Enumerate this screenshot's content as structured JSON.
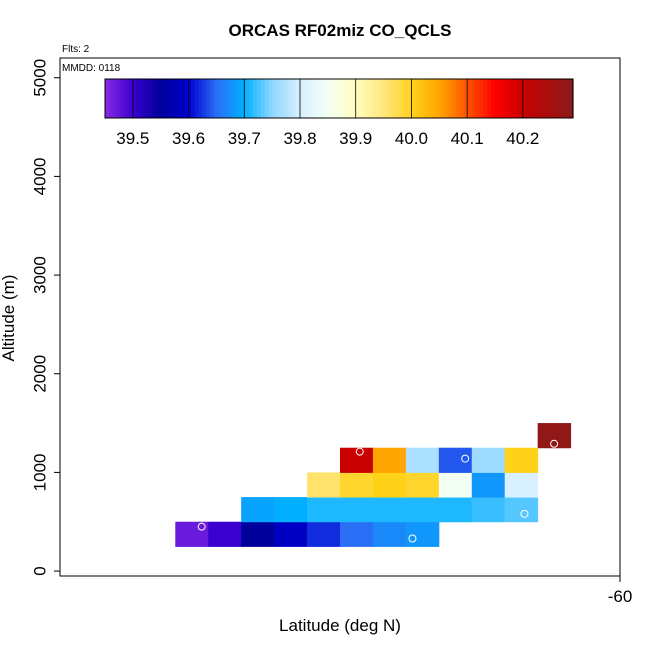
{
  "chart_data": {
    "type": "heatmap",
    "title": "ORCAS RF02miz CO_QCLS",
    "annotations": {
      "flights": "Flts: 2",
      "date": "MMDD: 0118"
    },
    "xlabel": "Latitude (deg N)",
    "ylabel": "Altitude (m)",
    "xlim": [
      -61.7,
      -60.0
    ],
    "ylim": [
      -50,
      5200
    ],
    "x_ticks": [
      -60
    ],
    "y_ticks": [
      0,
      1000,
      2000,
      3000,
      4000,
      5000
    ],
    "colorbar": {
      "range": [
        39.45,
        40.29
      ],
      "ticks": [
        "39.5",
        "39.6",
        "39.7",
        "39.8",
        "39.9",
        "40.0",
        "40.1",
        "40.2"
      ],
      "tick_values": [
        39.5,
        39.6,
        39.7,
        39.8,
        39.9,
        40.0,
        40.1,
        40.2
      ],
      "stops": [
        {
          "v": 39.45,
          "c": "#8a2be2"
        },
        {
          "v": 39.5,
          "c": "#3a00d0"
        },
        {
          "v": 39.55,
          "c": "#00009a"
        },
        {
          "v": 39.6,
          "c": "#0000cd"
        },
        {
          "v": 39.65,
          "c": "#2a6ef5"
        },
        {
          "v": 39.7,
          "c": "#00b0ff"
        },
        {
          "v": 39.75,
          "c": "#8fd6ff"
        },
        {
          "v": 39.8,
          "c": "#d8f0ff"
        },
        {
          "v": 39.85,
          "c": "#f4fff4"
        },
        {
          "v": 39.9,
          "c": "#ffffc0"
        },
        {
          "v": 39.95,
          "c": "#ffe680"
        },
        {
          "v": 40.0,
          "c": "#ffd21a"
        },
        {
          "v": 40.05,
          "c": "#ffa500"
        },
        {
          "v": 40.1,
          "c": "#ff5500"
        },
        {
          "v": 40.15,
          "c": "#ff0000"
        },
        {
          "v": 40.2,
          "c": "#c80000"
        },
        {
          "v": 40.29,
          "c": "#8b1a1a"
        }
      ]
    },
    "cell_size": {
      "lat": 0.1,
      "alt_m": 250
    },
    "cells": [
      {
        "lat": -61.3,
        "alt": 375,
        "value": 39.47
      },
      {
        "lat": -61.2,
        "alt": 375,
        "value": 39.5
      },
      {
        "lat": -61.1,
        "alt": 375,
        "value": 39.55
      },
      {
        "lat": -61.0,
        "alt": 375,
        "value": 39.59
      },
      {
        "lat": -60.9,
        "alt": 375,
        "value": 39.62
      },
      {
        "lat": -60.8,
        "alt": 375,
        "value": 39.65
      },
      {
        "lat": -60.7,
        "alt": 375,
        "value": 39.67
      },
      {
        "lat": -60.6,
        "alt": 375,
        "value": 39.68
      },
      {
        "lat": -61.1,
        "alt": 625,
        "value": 39.69
      },
      {
        "lat": -61.0,
        "alt": 625,
        "value": 39.7
      },
      {
        "lat": -60.9,
        "alt": 625,
        "value": 39.71
      },
      {
        "lat": -60.8,
        "alt": 625,
        "value": 39.71
      },
      {
        "lat": -60.7,
        "alt": 625,
        "value": 39.71
      },
      {
        "lat": -60.6,
        "alt": 625,
        "value": 39.71
      },
      {
        "lat": -60.5,
        "alt": 625,
        "value": 39.71
      },
      {
        "lat": -60.4,
        "alt": 625,
        "value": 39.72
      },
      {
        "lat": -60.3,
        "alt": 625,
        "value": 39.73
      },
      {
        "lat": -60.9,
        "alt": 875,
        "value": 39.96
      },
      {
        "lat": -60.8,
        "alt": 875,
        "value": 39.99
      },
      {
        "lat": -60.7,
        "alt": 875,
        "value": 40.0
      },
      {
        "lat": -60.6,
        "alt": 875,
        "value": 39.99
      },
      {
        "lat": -60.5,
        "alt": 875,
        "value": 39.85
      },
      {
        "lat": -60.4,
        "alt": 875,
        "value": 39.68
      },
      {
        "lat": -60.3,
        "alt": 875,
        "value": 39.8
      },
      {
        "lat": -60.8,
        "alt": 1125,
        "value": 40.2
      },
      {
        "lat": -60.7,
        "alt": 1125,
        "value": 40.05
      },
      {
        "lat": -60.6,
        "alt": 1125,
        "value": 39.77
      },
      {
        "lat": -60.5,
        "alt": 1125,
        "value": 39.64
      },
      {
        "lat": -60.4,
        "alt": 1125,
        "value": 39.76
      },
      {
        "lat": -60.3,
        "alt": 1125,
        "value": 40.0
      },
      {
        "lat": -60.2,
        "alt": 1375,
        "value": 40.28
      }
    ],
    "markers": [
      {
        "lat": -61.27,
        "alt": 450
      },
      {
        "lat": -60.63,
        "alt": 330
      },
      {
        "lat": -60.29,
        "alt": 580
      },
      {
        "lat": -60.47,
        "alt": 1140
      },
      {
        "lat": -60.79,
        "alt": 1210
      },
      {
        "lat": -60.2,
        "alt": 1290
      }
    ]
  }
}
